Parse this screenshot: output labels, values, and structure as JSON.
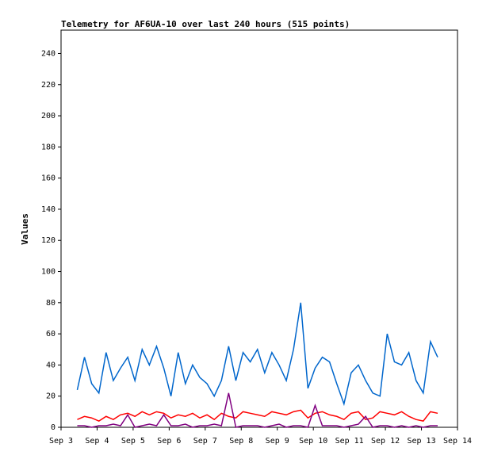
{
  "chart_data": {
    "type": "line",
    "title": "Telemetry for AF6UA-10 over last 240 hours (515 points)",
    "y_label": "Values",
    "x": [
      3.45,
      3.65,
      3.85,
      4.05,
      4.25,
      4.45,
      4.65,
      4.85,
      5.05,
      5.25,
      5.45,
      5.65,
      5.85,
      6.05,
      6.25,
      6.45,
      6.65,
      6.85,
      7.05,
      7.25,
      7.45,
      7.65,
      7.85,
      8.05,
      8.25,
      8.45,
      8.65,
      8.85,
      9.05,
      9.25,
      9.45,
      9.65,
      9.85,
      10.05,
      10.25,
      10.45,
      10.65,
      10.85,
      11.05,
      11.25,
      11.45,
      11.65,
      11.85,
      12.05,
      12.25,
      12.45,
      12.65,
      12.85,
      13.05,
      13.25,
      13.45
    ],
    "series": [
      {
        "color": "#0066cc",
        "values": [
          24,
          45,
          28,
          22,
          48,
          30,
          38,
          45,
          30,
          50,
          40,
          52,
          38,
          20,
          48,
          28,
          40,
          32,
          28,
          20,
          30,
          52,
          30,
          48,
          42,
          50,
          35,
          48,
          40,
          30,
          50,
          80,
          25,
          38,
          45,
          42,
          28,
          15,
          35,
          40,
          30,
          22,
          20,
          60,
          42,
          40,
          48,
          30,
          22,
          55,
          45
        ]
      },
      {
        "color": "#ff0000",
        "values": [
          5,
          7,
          6,
          4,
          7,
          5,
          8,
          9,
          7,
          10,
          8,
          10,
          9,
          6,
          8,
          7,
          9,
          6,
          8,
          5,
          9,
          7,
          6,
          10,
          9,
          8,
          7,
          10,
          9,
          8,
          10,
          11,
          6,
          9,
          10,
          8,
          7,
          5,
          9,
          10,
          5,
          6,
          10,
          9,
          8,
          10,
          7,
          5,
          4,
          10,
          9
        ]
      },
      {
        "color": "#800080",
        "values": [
          1,
          1,
          0,
          1,
          1,
          2,
          1,
          8,
          0,
          1,
          2,
          1,
          8,
          1,
          1,
          2,
          0,
          1,
          1,
          2,
          1,
          22,
          0,
          1,
          1,
          1,
          0,
          1,
          2,
          0,
          1,
          1,
          0,
          14,
          1,
          1,
          1,
          0,
          1,
          2,
          7,
          0,
          1,
          1,
          0,
          1,
          0,
          1,
          0,
          1,
          1
        ]
      }
    ],
    "xlim": [
      3,
      14
    ],
    "xticks": [
      {
        "value": 3,
        "label": "Sep 3"
      },
      {
        "value": 4,
        "label": "Sep 4"
      },
      {
        "value": 5,
        "label": "Sep 5"
      },
      {
        "value": 6,
        "label": "Sep 6"
      },
      {
        "value": 7,
        "label": "Sep 7"
      },
      {
        "value": 8,
        "label": "Sep 8"
      },
      {
        "value": 9,
        "label": "Sep 9"
      },
      {
        "value": 10,
        "label": "Sep 10"
      },
      {
        "value": 11,
        "label": "Sep 11"
      },
      {
        "value": 12,
        "label": "Sep 12"
      },
      {
        "value": 13,
        "label": "Sep 13"
      },
      {
        "value": 14,
        "label": "Sep 14"
      }
    ],
    "ylim": [
      0,
      255
    ],
    "yticks": [
      0,
      20,
      40,
      60,
      80,
      100,
      120,
      140,
      160,
      180,
      200,
      220,
      240
    ]
  }
}
